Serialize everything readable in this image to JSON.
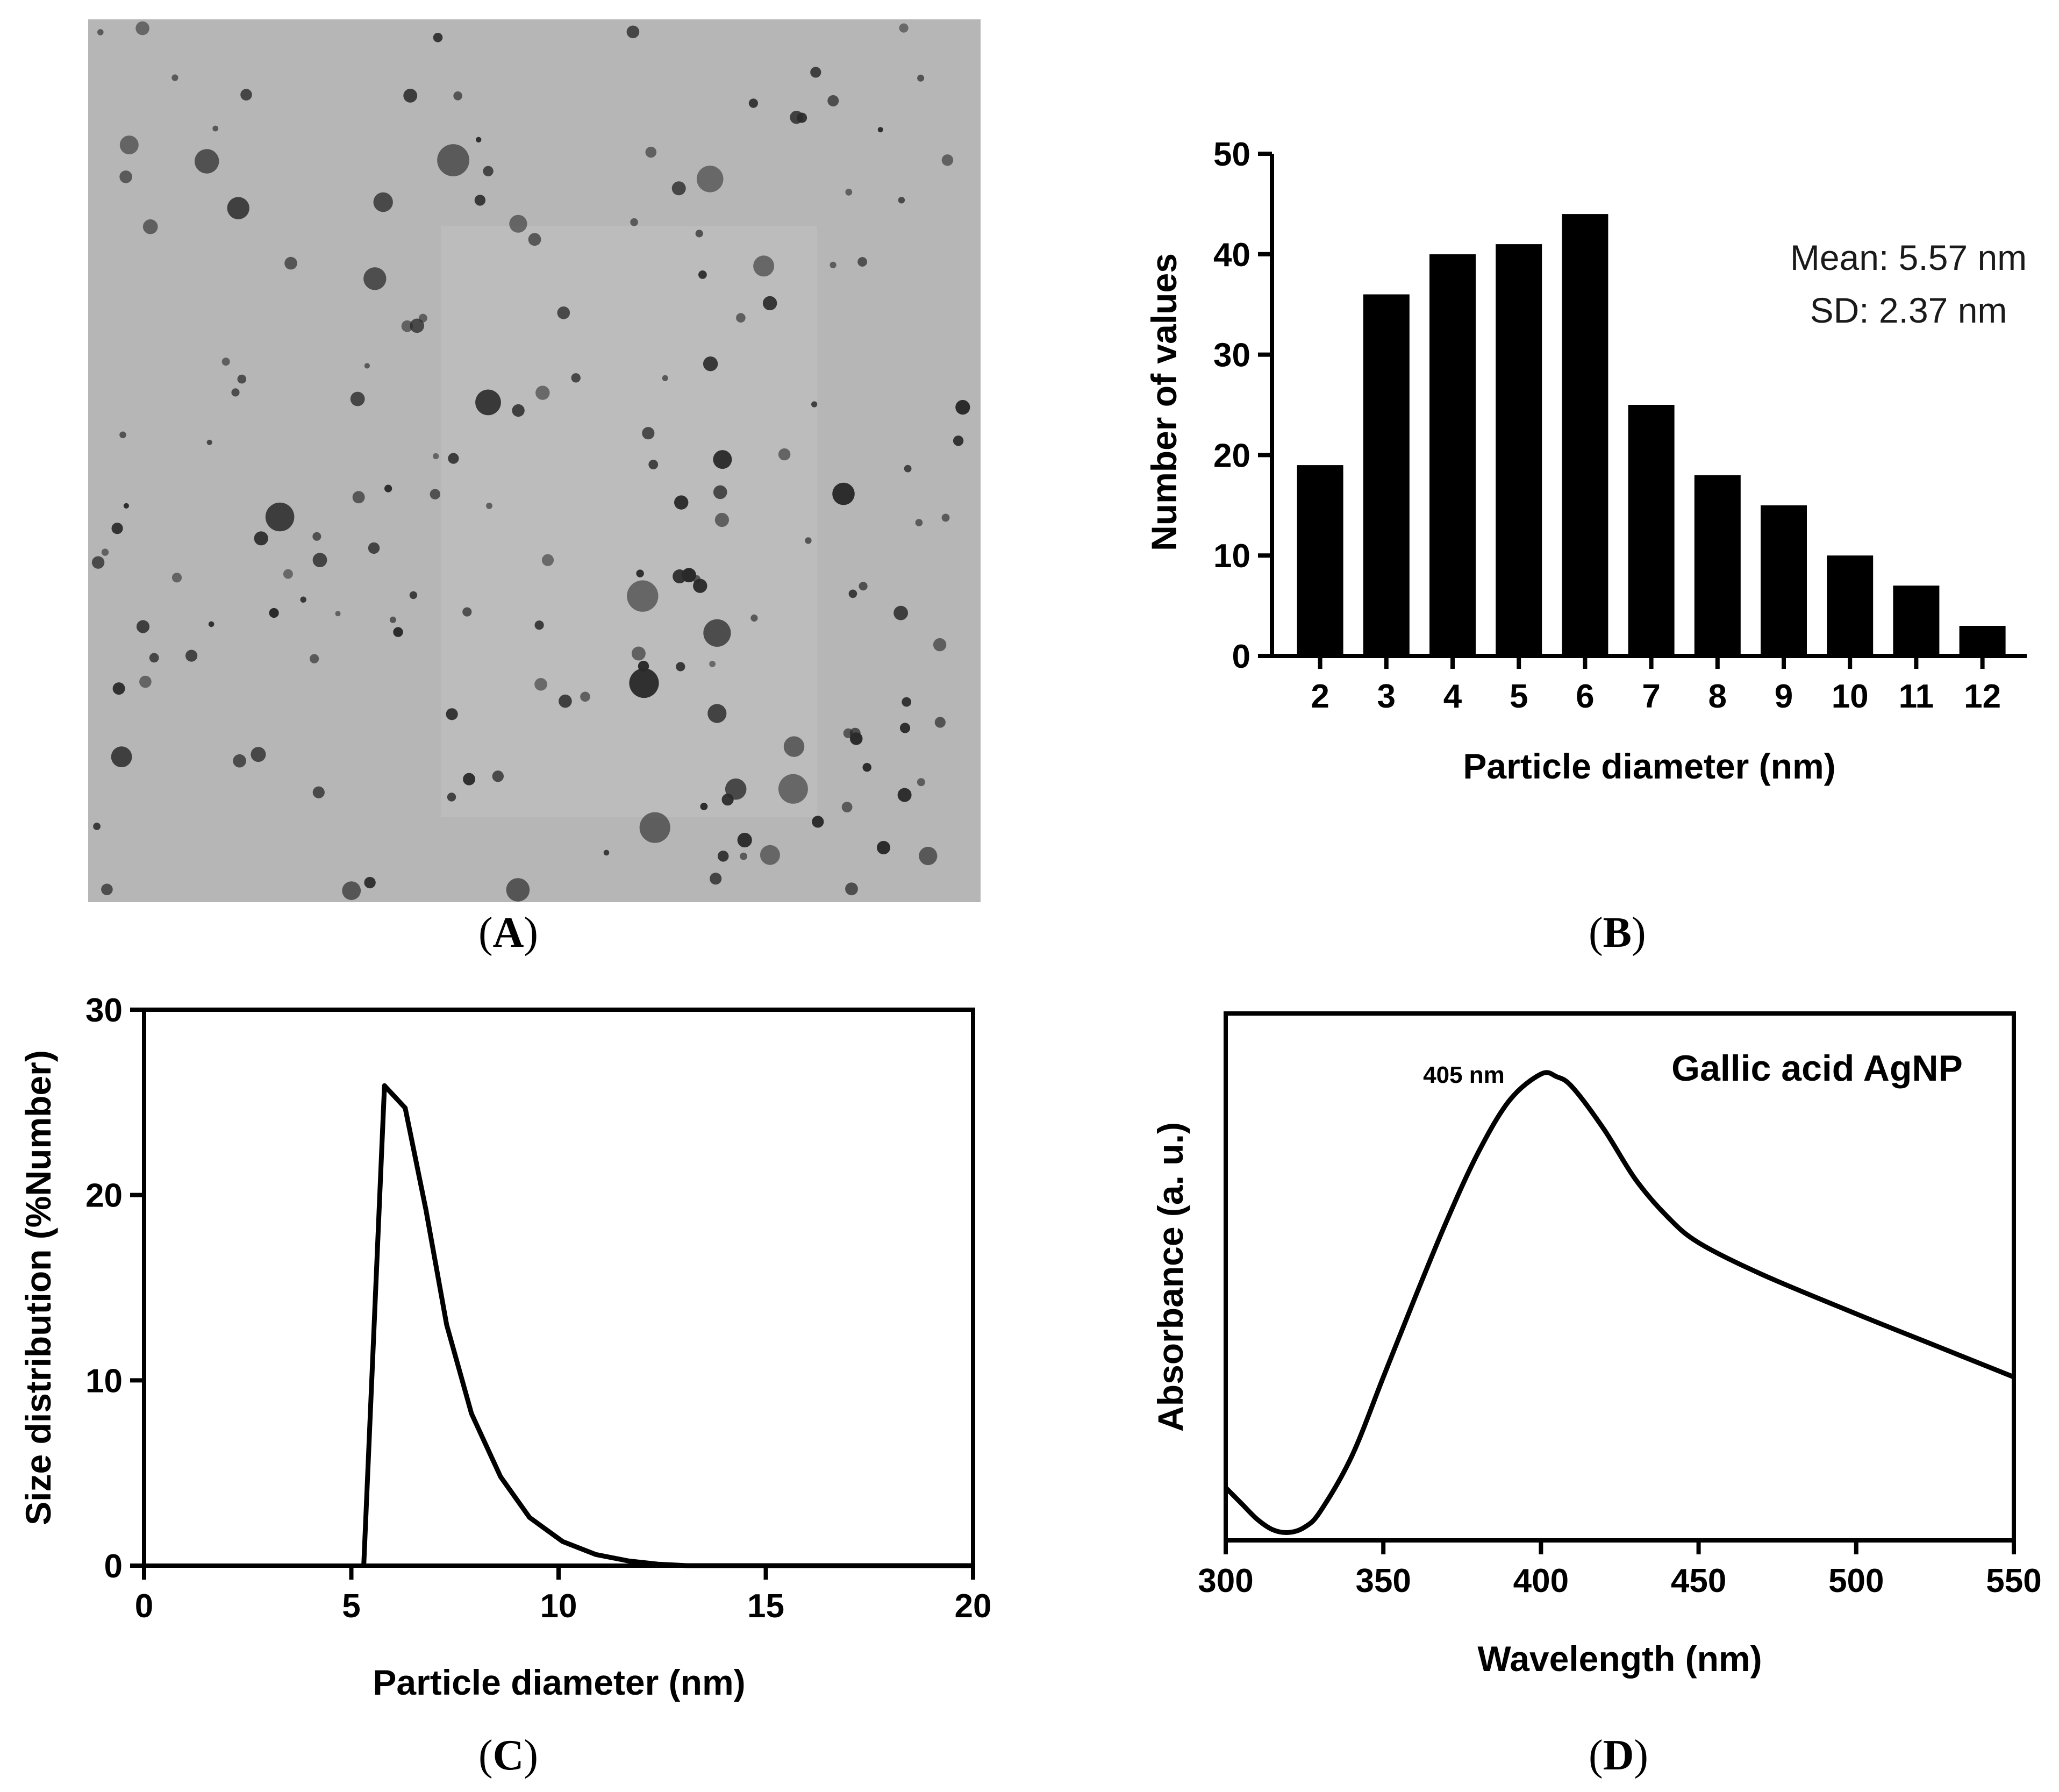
{
  "captions": {
    "a": {
      "open": "(",
      "letter": "A",
      "close": ")"
    },
    "b": {
      "open": "(",
      "letter": "B",
      "close": ")"
    },
    "c": {
      "open": "(",
      "letter": "C",
      "close": ")"
    },
    "d": {
      "open": "(",
      "letter": "D",
      "close": ")"
    }
  },
  "tem_image": {
    "background": "#b6b6b6",
    "particle_color": "#2a2a2a"
  },
  "chart_data": [
    {
      "panel": "B",
      "type": "bar",
      "categories": [
        "2",
        "3",
        "4",
        "5",
        "6",
        "7",
        "8",
        "9",
        "10",
        "11",
        "12"
      ],
      "values": [
        19,
        36,
        40,
        41,
        44,
        25,
        18,
        15,
        10,
        7,
        3
      ],
      "xlabel": "Particle diameter (nm)",
      "ylabel": "Number of values",
      "ylim": [
        0,
        50
      ],
      "yticks": [
        0,
        10,
        20,
        30,
        40,
        50
      ],
      "annotations": [
        "Mean: 5.57 nm",
        "SD: 2.37 nm"
      ],
      "grid": false
    },
    {
      "panel": "C",
      "type": "line",
      "x": [
        5.3,
        5.8,
        6.3,
        6.8,
        7.3,
        7.9,
        8.6,
        9.3,
        10.1,
        10.9,
        11.7,
        12.4,
        13.1,
        20
      ],
      "y": [
        0,
        25.9,
        24.7,
        19.2,
        13,
        8.2,
        4.8,
        2.6,
        1.3,
        0.6,
        0.25,
        0.08,
        0,
        0
      ],
      "xlabel": "Particle diameter (nm)",
      "ylabel": "Size distribution (%Number)",
      "xlim": [
        0,
        20
      ],
      "ylim": [
        0,
        30
      ],
      "xticks": [
        0,
        5,
        10,
        15,
        20
      ],
      "yticks": [
        0,
        10,
        20,
        30
      ],
      "grid": false
    },
    {
      "panel": "D",
      "type": "line",
      "x": [
        300,
        305,
        310,
        315,
        320,
        325,
        330,
        340,
        350,
        360,
        370,
        380,
        390,
        400,
        405,
        410,
        420,
        430,
        440,
        450,
        470,
        500,
        525,
        550
      ],
      "y": [
        0.2,
        0.14,
        0.08,
        0.04,
        0.03,
        0.05,
        0.11,
        0.32,
        0.62,
        0.92,
        1.21,
        1.47,
        1.67,
        1.77,
        1.76,
        1.72,
        1.56,
        1.37,
        1.23,
        1.13,
        1.01,
        0.86,
        0.74,
        0.62
      ],
      "xlabel": "Wavelength (nm)",
      "ylabel": "Absorbance (a. u.)",
      "xlim": [
        300,
        550
      ],
      "ylim": [
        0,
        2
      ],
      "xticks": [
        300,
        350,
        400,
        450,
        500,
        550
      ],
      "legend": "Gallic acid AgNP",
      "annotations": [
        "405 nm"
      ],
      "grid": false
    }
  ]
}
